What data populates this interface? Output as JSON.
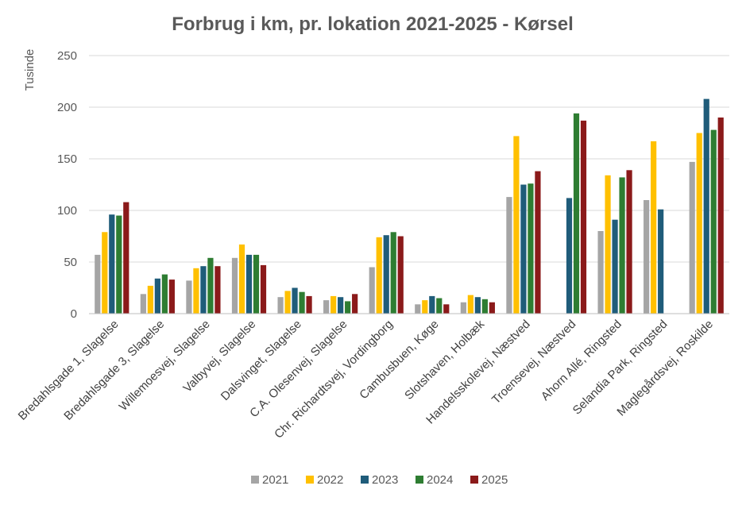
{
  "chart_data": {
    "type": "bar",
    "title": "Forbrug i km, pr. lokation 2021-2025 - Kørsel",
    "ylabel": "Tusinde",
    "xlabel": "",
    "ylim": [
      0,
      250
    ],
    "yticks": [
      0,
      50,
      100,
      150,
      200,
      250
    ],
    "grid": true,
    "legend_position": "bottom",
    "categories": [
      "Bredahlsgade 1, Slagelse",
      "Bredahlsgade 3, Slagelse",
      "Willemoesvej, Slagelse",
      "Valbyvej, Slagelse",
      "Dalsvinget, Slagelse",
      "C.A. Olesenvej, Slagelse",
      "Chr. Richardtsvej, Vordingborg",
      "Cambusbuen, Køge",
      "Slotshaven, Holbæk",
      "Handelsskolevej, Næstved",
      "Troensevej, Næstved",
      "Ahorn Allé, Ringsted",
      "Selandia Park, Ringsted",
      "Maglegårdsvej, Roskilde"
    ],
    "series": [
      {
        "name": "2021",
        "color": "#a5a5a5",
        "values": [
          57,
          19,
          32,
          54,
          16,
          13,
          45,
          9,
          11,
          113,
          null,
          80,
          110,
          147
        ]
      },
      {
        "name": "2022",
        "color": "#ffc000",
        "values": [
          79,
          27,
          44,
          67,
          22,
          17,
          74,
          13,
          18,
          172,
          null,
          134,
          167,
          175
        ]
      },
      {
        "name": "2023",
        "color": "#1f5c7a",
        "values": [
          96,
          34,
          46,
          57,
          25,
          16,
          76,
          17,
          16,
          125,
          112,
          91,
          101,
          208
        ]
      },
      {
        "name": "2024",
        "color": "#2e7d32",
        "values": [
          95,
          38,
          54,
          57,
          21,
          12,
          79,
          15,
          14,
          126,
          194,
          132,
          null,
          178
        ]
      },
      {
        "name": "2025",
        "color": "#8b1a1a",
        "values": [
          108,
          33,
          46,
          47,
          17,
          19,
          75,
          9,
          11,
          138,
          187,
          139,
          null,
          190
        ]
      }
    ]
  }
}
